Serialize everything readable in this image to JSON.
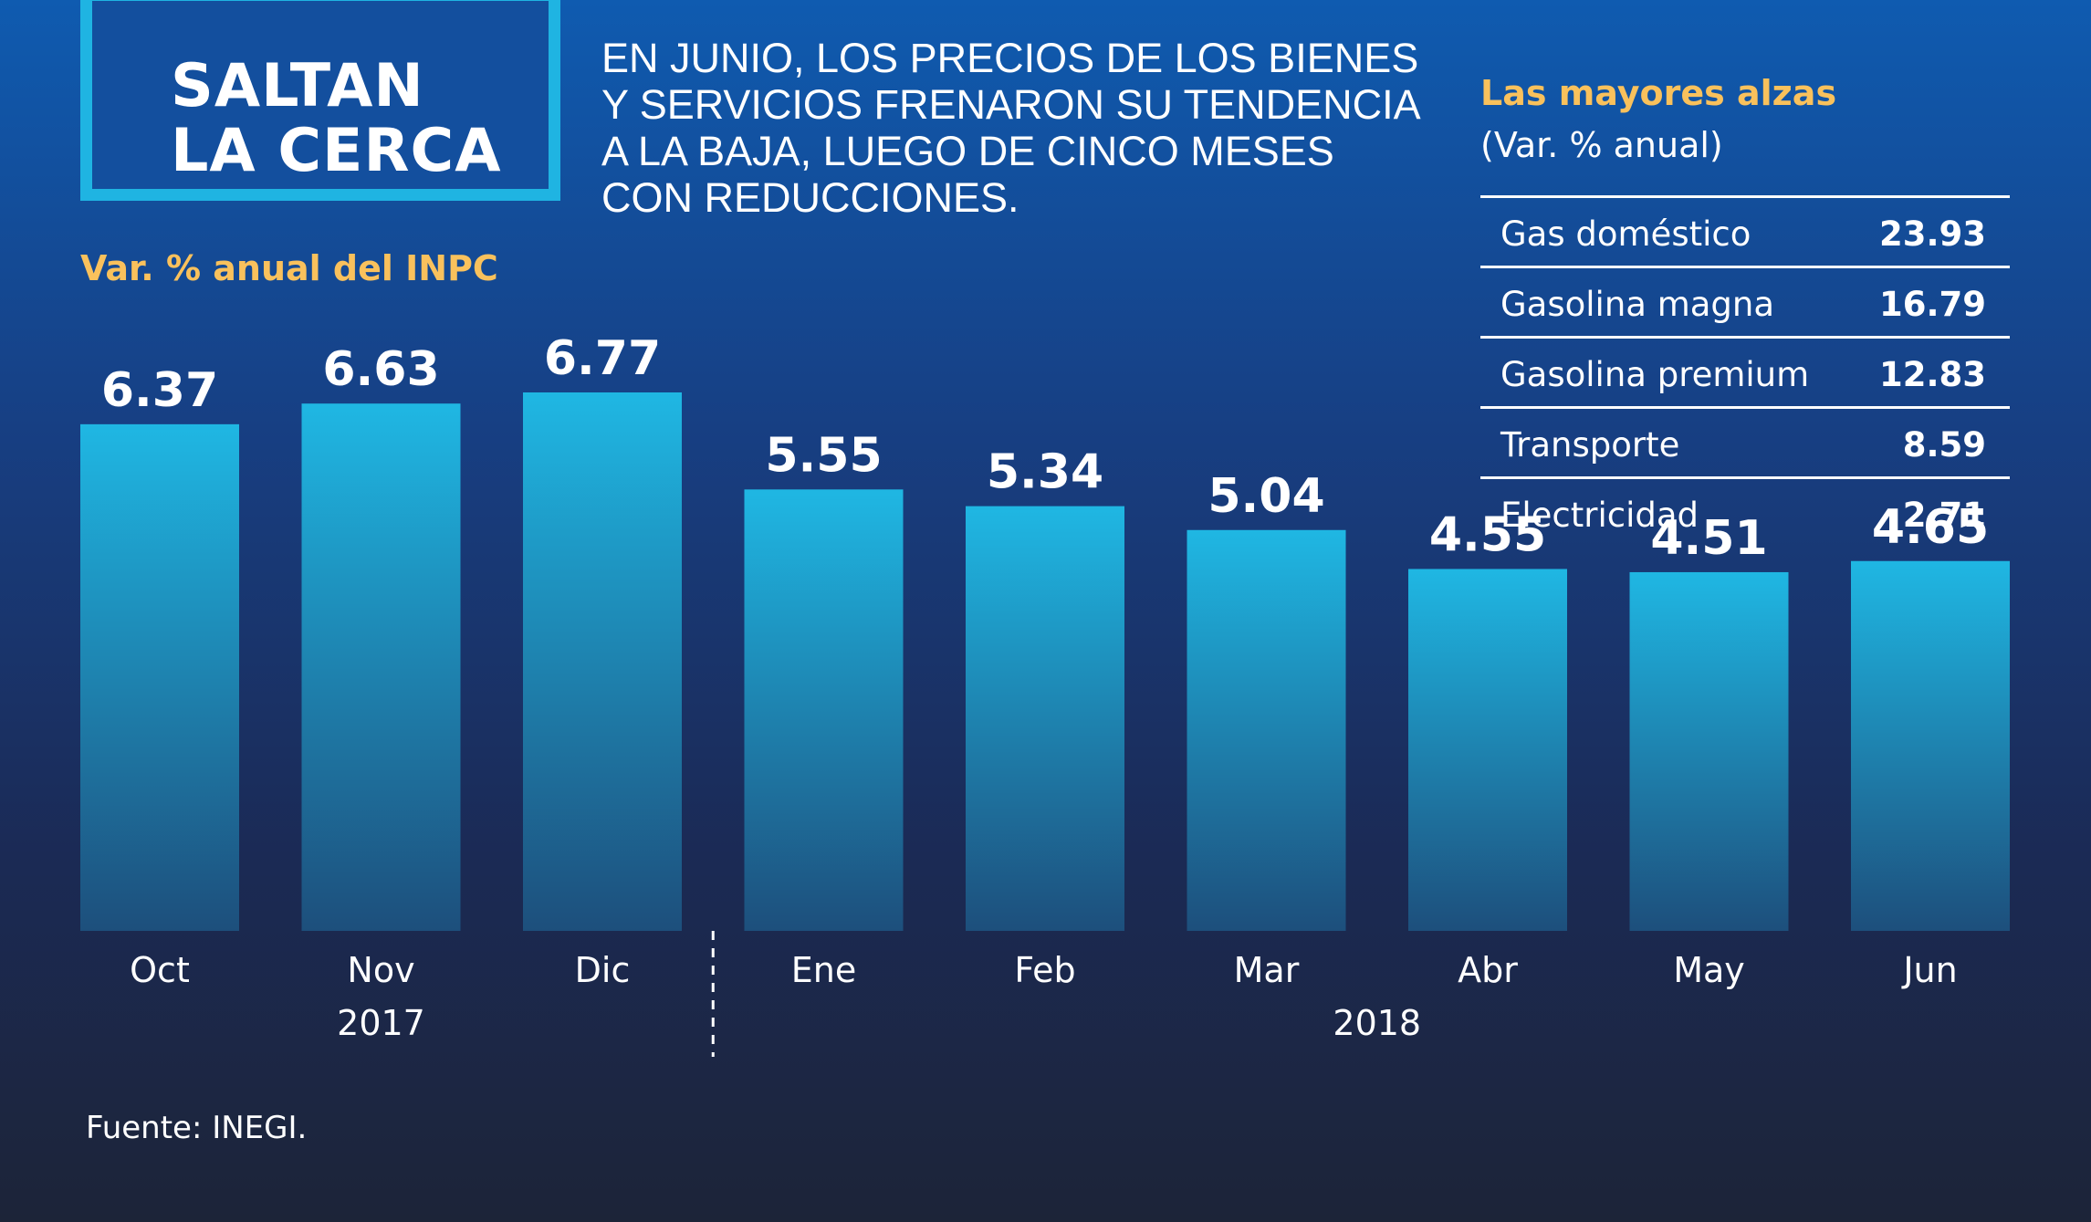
{
  "title": {
    "line1": "SALTAN",
    "line2": "LA CERCA"
  },
  "intro": "EN JUNIO, LOS PRECIOS DE LOS BIENES Y SERVICIOS FRENARON SU TENDENCIA A LA BAJA, LUEGO DE CINCO MESES CON REDUCCIONES.",
  "chart_label": "Var. % anual del INPC",
  "side_panel": {
    "title": "Las mayores alzas",
    "subtitle": "(Var. % anual)",
    "rows": [
      {
        "name": "Gas doméstico",
        "value": "23.93"
      },
      {
        "name": "Gasolina magna",
        "value": "16.79"
      },
      {
        "name": "Gasolina premium",
        "value": "12.83"
      },
      {
        "name": "Transporte",
        "value": "8.59"
      },
      {
        "name": "Electricidad",
        "value": "2.71"
      }
    ]
  },
  "source": "Fuente: INEGI.",
  "colors": {
    "bar_top": "#1fb7e3",
    "bar_bottom": "#1d4f7c",
    "accent": "#f9c15c",
    "frame": "#1fb4e2"
  },
  "chart_data": {
    "type": "bar",
    "categories": [
      "Oct",
      "Nov",
      "Dic",
      "Ene",
      "Feb",
      "Mar",
      "Abr",
      "May",
      "Jun"
    ],
    "values": [
      6.37,
      6.63,
      6.77,
      5.55,
      5.34,
      5.04,
      4.55,
      4.51,
      4.65
    ],
    "year_groups": [
      {
        "label": "2017",
        "categories": [
          "Oct",
          "Nov",
          "Dic"
        ]
      },
      {
        "label": "2018",
        "categories": [
          "Ene",
          "Feb",
          "Mar",
          "Abr",
          "May",
          "Jun"
        ]
      }
    ],
    "title": "Var. % anual del INPC",
    "xlabel": "",
    "ylabel": "",
    "ylim": [
      0,
      6.77
    ],
    "grid": false,
    "legend": "none"
  }
}
